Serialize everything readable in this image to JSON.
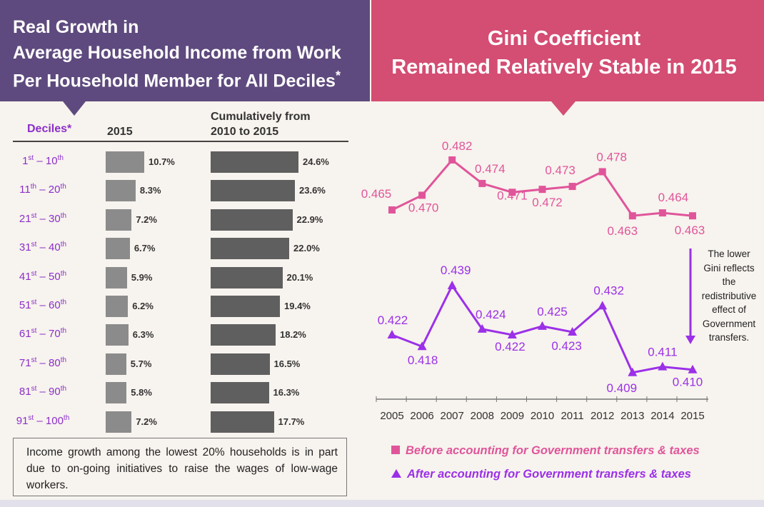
{
  "left_title": {
    "line1": "Real Growth in",
    "line2": "Average Household Income from Work",
    "line3": "Per Household Member for All Deciles",
    "asterisk": "*"
  },
  "right_title": {
    "line1": "Gini Coefficient",
    "line2": "Remained Relatively Stable in 2015"
  },
  "colors": {
    "left_header": "#5e4a7e",
    "right_header": "#d44d73",
    "before_series": "#e0559a",
    "after_series": "#9b30e8",
    "decile_label": "#8b2fc9"
  },
  "table": {
    "col_deciles": "Deciles*",
    "col_2015": "2015",
    "col_cum_line1": "Cumulatively from",
    "col_cum_line2": "2010 to 2015"
  },
  "note_text": "Income growth among the lowest 20% households is in part due to on-going initiatives to raise the wages of low-wage workers.",
  "side_note": [
    "The lower",
    "Gini reflects",
    "the",
    "redistributive",
    "effect of",
    "Government",
    "transfers."
  ],
  "legend": {
    "before": "Before accounting for Government transfers & taxes",
    "after": "After accounting for Government transfers & taxes"
  },
  "chart_data": [
    {
      "type": "bar",
      "orientation": "horizontal",
      "categories": [
        [
          "1",
          "st",
          " – 10",
          "th"
        ],
        [
          "11",
          "th",
          " – 20",
          "th"
        ],
        [
          "21",
          "st",
          " – 30",
          "th"
        ],
        [
          "31",
          "st",
          " – 40",
          "th"
        ],
        [
          "41",
          "st",
          " – 50",
          "th"
        ],
        [
          "51",
          "st",
          " – 60",
          "th"
        ],
        [
          "61",
          "st",
          " – 70",
          "th"
        ],
        [
          "71",
          "st",
          " – 80",
          "th"
        ],
        [
          "81",
          "st",
          " – 90",
          "th"
        ],
        [
          "91",
          "st",
          " – 100",
          "th"
        ]
      ],
      "series": [
        {
          "name": "2015",
          "values": [
            10.7,
            8.3,
            7.2,
            6.7,
            5.9,
            6.2,
            6.3,
            5.7,
            5.8,
            7.2
          ],
          "labels": [
            "10.7%",
            "8.3%",
            "7.2%",
            "6.7%",
            "5.9%",
            "6.2%",
            "6.3%",
            "5.7%",
            "5.8%",
            "7.2%"
          ]
        },
        {
          "name": "Cumulatively from 2010 to 2015",
          "values": [
            24.6,
            23.6,
            22.9,
            22.0,
            20.1,
            19.4,
            18.2,
            16.5,
            16.3,
            17.7
          ],
          "labels": [
            "24.6%",
            "23.6%",
            "22.9%",
            "22.0%",
            "20.1%",
            "19.4%",
            "18.2%",
            "16.5%",
            "16.3%",
            "17.7%"
          ]
        }
      ],
      "unit": "%"
    },
    {
      "type": "line",
      "x": [
        "2005",
        "2006",
        "2007",
        "2008",
        "2009",
        "2010",
        "2011",
        "2012",
        "2013",
        "2014",
        "2015"
      ],
      "series": [
        {
          "name": "Before accounting for Government transfers & taxes",
          "values": [
            0.465,
            0.47,
            0.482,
            0.474,
            0.471,
            0.472,
            0.473,
            0.478,
            0.463,
            0.464,
            0.463
          ],
          "labels": [
            "0.465",
            "0.470",
            "0.482",
            "0.474",
            "0.471",
            "0.472",
            "0.473",
            "0.478",
            "0.463",
            "0.464",
            "0.463"
          ],
          "marker": "square"
        },
        {
          "name": "After accounting for Government transfers & taxes",
          "values": [
            0.422,
            0.418,
            0.439,
            0.424,
            0.422,
            0.425,
            0.423,
            0.432,
            0.409,
            0.411,
            0.41
          ],
          "labels": [
            "0.422",
            "0.418",
            "0.439",
            "0.424",
            "0.422",
            "0.425",
            "0.423",
            "0.432",
            "0.409",
            "0.411",
            "0.410"
          ],
          "marker": "triangle"
        }
      ],
      "grid": false,
      "legend": "bottom"
    }
  ]
}
